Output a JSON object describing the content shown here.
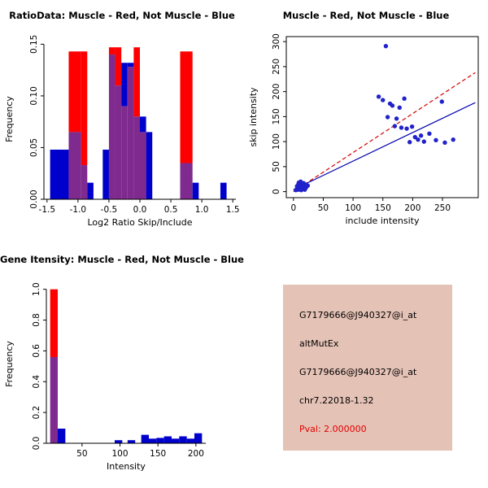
{
  "colors": {
    "red": "#FF0000",
    "blue": "#0000CC",
    "overlap": "#7E2A8E",
    "scatter_point": "#2222CC",
    "fit_red": "#D40000",
    "fit_blue": "#0000B0",
    "axis": "#000000",
    "info_bg": "#E5C2B6",
    "pval_red": "#E00000"
  },
  "chart_data": [
    {
      "id": "ratio_hist",
      "type": "bar",
      "title": "RatioData: Muscle - Red, Not Muscle - Blue",
      "xlabel": "Log2 Ratio Skip/Include",
      "ylabel": "Frequency",
      "xlim": [
        -1.55,
        1.55
      ],
      "ylim": [
        0,
        0.155
      ],
      "xticks": [
        -1.5,
        -1.0,
        -0.5,
        0.0,
        0.5,
        1.0,
        1.5
      ],
      "xtick_labels": [
        "-1.5",
        "-1.0",
        "-0.5",
        "0.0",
        "0.5",
        "1.0",
        "1.5"
      ],
      "yticks": [
        0,
        0.05,
        0.1,
        0.15
      ],
      "ytick_labels": [
        "0.00",
        "0.05",
        "0.10",
        "0.15"
      ],
      "bins": [
        {
          "x0": -1.45,
          "x1": -1.15,
          "red": 0,
          "blue": 0.048
        },
        {
          "x0": -1.15,
          "x1": -0.95,
          "red": 0.143,
          "blue": 0.065
        },
        {
          "x0": -0.95,
          "x1": -0.85,
          "red": 0.143,
          "blue": 0.033
        },
        {
          "x0": -0.85,
          "x1": -0.75,
          "red": 0,
          "blue": 0.016
        },
        {
          "x0": -0.6,
          "x1": -0.5,
          "red": 0,
          "blue": 0.048
        },
        {
          "x0": -0.5,
          "x1": -0.4,
          "red": 0.147,
          "blue": 0.14
        },
        {
          "x0": -0.4,
          "x1": -0.3,
          "red": 0.147,
          "blue": 0.11
        },
        {
          "x0": -0.3,
          "x1": -0.2,
          "red": 0.09,
          "blue": 0.132
        },
        {
          "x0": -0.2,
          "x1": -0.1,
          "red": 0.128,
          "blue": 0.132
        },
        {
          "x0": -0.1,
          "x1": 0.0,
          "red": 0.147,
          "blue": 0.08
        },
        {
          "x0": 0.0,
          "x1": 0.1,
          "red": 0.065,
          "blue": 0.08
        },
        {
          "x0": 0.1,
          "x1": 0.2,
          "red": 0,
          "blue": 0.065
        },
        {
          "x0": 0.65,
          "x1": 0.85,
          "red": 0.143,
          "blue": 0.035
        },
        {
          "x0": 0.85,
          "x1": 0.95,
          "red": 0,
          "blue": 0.016
        },
        {
          "x0": 1.3,
          "x1": 1.4,
          "red": 0,
          "blue": 0.016
        }
      ]
    },
    {
      "id": "scatter",
      "type": "scatter",
      "title": "Muscle - Red, Not Muscle - Blue",
      "xlabel": "include intensity",
      "ylabel": "skip intensity",
      "xlim": [
        -12,
        310
      ],
      "ylim": [
        -12,
        310
      ],
      "xticks": [
        0,
        50,
        100,
        150,
        200,
        250
      ],
      "xtick_labels": [
        "0",
        "50",
        "100",
        "150",
        "200",
        "250"
      ],
      "yticks": [
        0,
        50,
        100,
        150,
        200,
        250,
        300
      ],
      "ytick_labels": [
        "0",
        "50",
        "100",
        "150",
        "200",
        "250",
        "300"
      ],
      "box": true,
      "points": [
        [
          4,
          3
        ],
        [
          6,
          6
        ],
        [
          8,
          4
        ],
        [
          10,
          9
        ],
        [
          12,
          6
        ],
        [
          14,
          10
        ],
        [
          6,
          11
        ],
        [
          8,
          14
        ],
        [
          11,
          15
        ],
        [
          13,
          3
        ],
        [
          15,
          7
        ],
        [
          16,
          12
        ],
        [
          18,
          9
        ],
        [
          20,
          14
        ],
        [
          9,
          18
        ],
        [
          17,
          17
        ],
        [
          21,
          8
        ],
        [
          12,
          20
        ],
        [
          24,
          12
        ],
        [
          19,
          4
        ],
        [
          143,
          190
        ],
        [
          150,
          183
        ],
        [
          155,
          291
        ],
        [
          158,
          149
        ],
        [
          162,
          176
        ],
        [
          166,
          172
        ],
        [
          170,
          131
        ],
        [
          173,
          146
        ],
        [
          178,
          168
        ],
        [
          181,
          128
        ],
        [
          186,
          186
        ],
        [
          190,
          126
        ],
        [
          195,
          99
        ],
        [
          199,
          130
        ],
        [
          204,
          109
        ],
        [
          209,
          104
        ],
        [
          214,
          112
        ],
        [
          219,
          100
        ],
        [
          228,
          116
        ],
        [
          239,
          103
        ],
        [
          249,
          180
        ],
        [
          254,
          98
        ],
        [
          268,
          104
        ]
      ],
      "lines": [
        {
          "x1": 0,
          "y1": 0,
          "x2": 305,
          "y2": 238,
          "color": "#D40000",
          "dash": true
        },
        {
          "x1": 0,
          "y1": 4,
          "x2": 305,
          "y2": 178,
          "color": "#0000B0",
          "dash": false
        }
      ]
    },
    {
      "id": "gene_hist",
      "type": "bar",
      "title": "Gene Itensity: Muscle - Red, Not Muscle - Blue",
      "xlabel": "Intensity",
      "ylabel": "Frequency",
      "xlim": [
        3,
        213
      ],
      "ylim": [
        0,
        1.03
      ],
      "xticks": [
        50,
        100,
        150,
        200
      ],
      "xtick_labels": [
        "50",
        "100",
        "150",
        "200"
      ],
      "yticks": [
        0,
        0.2,
        0.4,
        0.6,
        0.8,
        1.0
      ],
      "ytick_labels": [
        "0.0",
        "0.2",
        "0.4",
        "0.6",
        "0.8",
        "1.0"
      ],
      "bins": [
        {
          "x0": 8,
          "x1": 18,
          "red": 1.0,
          "blue": 0.56
        },
        {
          "x0": 18,
          "x1": 28,
          "red": 0,
          "blue": 0.095
        },
        {
          "x0": 93,
          "x1": 103,
          "red": 0,
          "blue": 0.02
        },
        {
          "x0": 110,
          "x1": 120,
          "red": 0,
          "blue": 0.02
        },
        {
          "x0": 128,
          "x1": 138,
          "red": 0,
          "blue": 0.055
        },
        {
          "x0": 138,
          "x1": 148,
          "red": 0,
          "blue": 0.03
        },
        {
          "x0": 148,
          "x1": 158,
          "red": 0,
          "blue": 0.035
        },
        {
          "x0": 158,
          "x1": 168,
          "red": 0,
          "blue": 0.045
        },
        {
          "x0": 168,
          "x1": 178,
          "red": 0,
          "blue": 0.03
        },
        {
          "x0": 178,
          "x1": 188,
          "red": 0,
          "blue": 0.045
        },
        {
          "x0": 188,
          "x1": 198,
          "red": 0,
          "blue": 0.03
        },
        {
          "x0": 198,
          "x1": 208,
          "red": 0,
          "blue": 0.065
        }
      ]
    }
  ],
  "info_panel": {
    "probe_id": "G7179666@J940327@i_at",
    "event_type": "altMutEx",
    "probe_id_repeat": "G7179666@J940327@i_at",
    "location": "chr7.22018-1.32",
    "pval": "Pval: 2.000000"
  }
}
